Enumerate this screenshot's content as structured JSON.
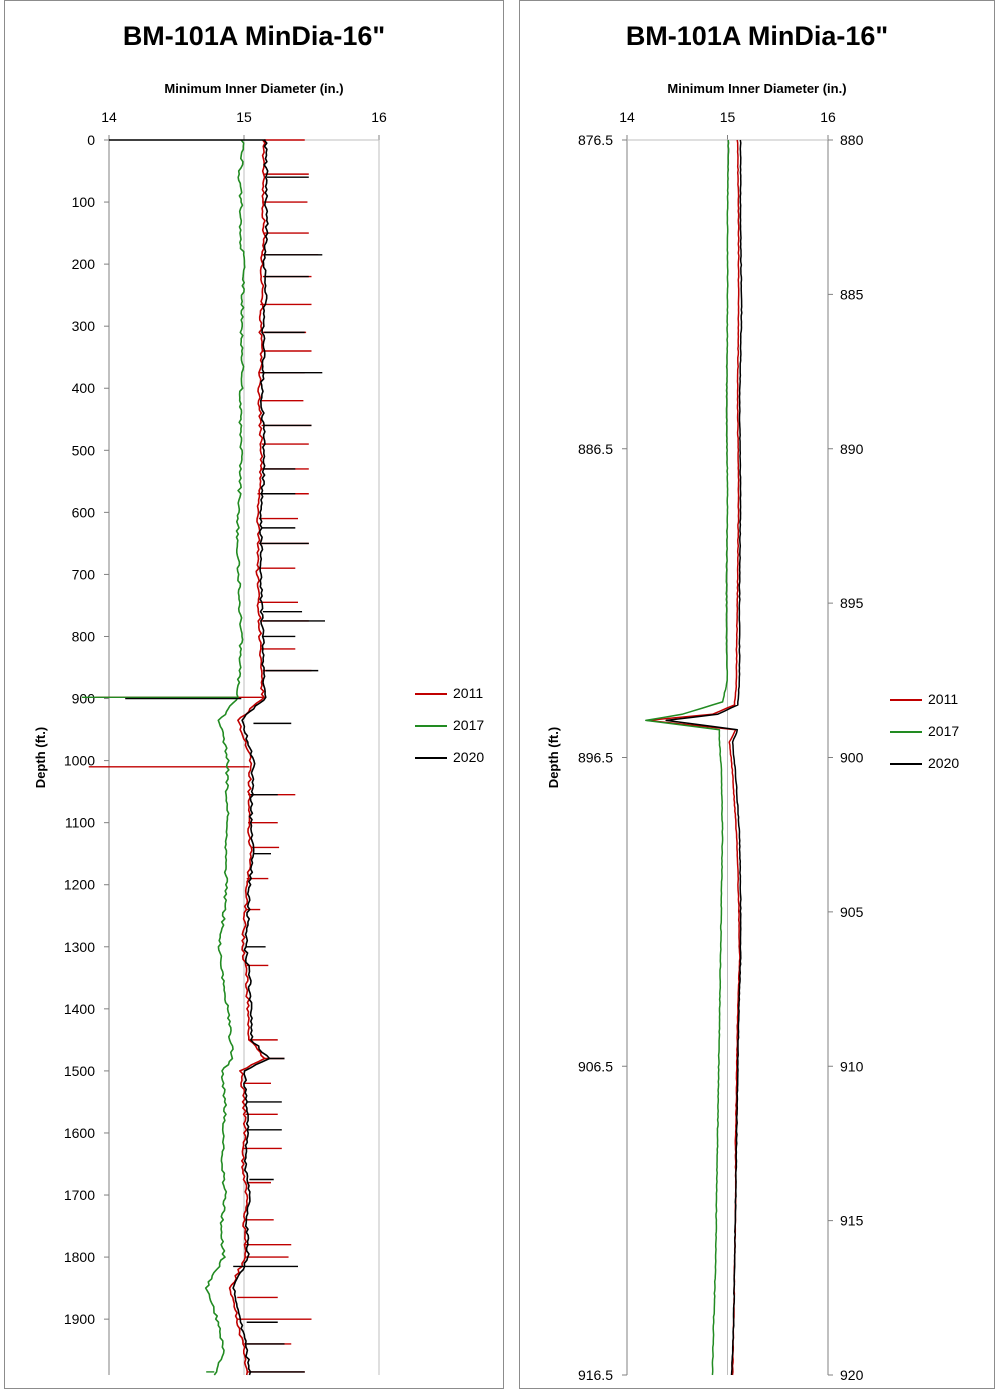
{
  "chart_data": [
    {
      "type": "line",
      "title": "BM-101A MinDia-16\"",
      "xlabel": "Minimum Inner Diameter (in.)",
      "ylabel": "Depth (ft.)",
      "xlim": [
        14,
        16
      ],
      "ylim": [
        0,
        1990
      ],
      "x_ticks": [
        "14",
        "15",
        "16"
      ],
      "y_ticks": [
        "0",
        "100",
        "200",
        "300",
        "400",
        "500",
        "600",
        "700",
        "800",
        "900",
        "1000",
        "1100",
        "1200",
        "1300",
        "1400",
        "1500",
        "1600",
        "1700",
        "1800",
        "1900"
      ],
      "legend": "right",
      "series": [
        {
          "name": "2011",
          "color": "#c00000",
          "depth": [
            0,
            40,
            60,
            100,
            150,
            200,
            250,
            300,
            350,
            400,
            450,
            500,
            550,
            600,
            650,
            700,
            750,
            800,
            850,
            898,
            935,
            1000,
            1050,
            1100,
            1150,
            1200,
            1250,
            1300,
            1350,
            1400,
            1450,
            1480,
            1500,
            1550,
            1600,
            1650,
            1700,
            1750,
            1800,
            1850,
            1900,
            1950,
            1990
          ],
          "diameter": [
            15.15,
            15.14,
            15.15,
            15.14,
            15.15,
            15.13,
            15.14,
            15.12,
            15.13,
            15.11,
            15.12,
            15.13,
            15.12,
            15.1,
            15.11,
            15.1,
            15.11,
            15.12,
            15.12,
            15.14,
            14.96,
            15.05,
            15.04,
            15.03,
            15.05,
            15.02,
            15.01,
            14.99,
            15.02,
            15.03,
            15.04,
            15.15,
            14.98,
            15.0,
            15.01,
            14.99,
            15.02,
            15.0,
            15.01,
            14.9,
            14.95,
            15.0,
            15.02
          ],
          "spikes": [
            [
              0,
              15.45
            ],
            [
              55,
              15.48
            ],
            [
              100,
              15.47
            ],
            [
              150,
              15.48
            ],
            [
              185,
              15.55
            ],
            [
              220,
              15.5
            ],
            [
              265,
              15.5
            ],
            [
              310,
              15.46
            ],
            [
              340,
              15.5
            ],
            [
              375,
              15.45
            ],
            [
              420,
              15.44
            ],
            [
              460,
              15.5
            ],
            [
              490,
              15.48
            ],
            [
              530,
              15.48
            ],
            [
              570,
              15.48
            ],
            [
              610,
              15.4
            ],
            [
              650,
              15.48
            ],
            [
              690,
              15.38
            ],
            [
              745,
              15.4
            ],
            [
              775,
              15.48
            ],
            [
              820,
              15.38
            ],
            [
              855,
              15.5
            ],
            [
              898,
              13.9
            ],
            [
              1010,
              13.85
            ],
            [
              1055,
              15.38
            ],
            [
              1100,
              15.25
            ],
            [
              1140,
              15.26
            ],
            [
              1190,
              15.18
            ],
            [
              1240,
              15.12
            ],
            [
              1330,
              15.18
            ],
            [
              1450,
              15.25
            ],
            [
              1480,
              15.3
            ],
            [
              1520,
              15.2
            ],
            [
              1570,
              15.25
            ],
            [
              1625,
              15.28
            ],
            [
              1680,
              15.2
            ],
            [
              1740,
              15.22
            ],
            [
              1780,
              15.35
            ],
            [
              1800,
              15.33
            ],
            [
              1865,
              15.25
            ],
            [
              1900,
              15.5
            ],
            [
              1940,
              15.35
            ],
            [
              1985,
              15.45
            ]
          ]
        },
        {
          "name": "2017",
          "color": "#228b22",
          "depth": [
            0,
            25,
            40,
            60,
            100,
            150,
            200,
            250,
            300,
            350,
            400,
            450,
            500,
            550,
            600,
            650,
            700,
            750,
            800,
            850,
            898,
            935,
            1000,
            1050,
            1100,
            1150,
            1200,
            1250,
            1300,
            1350,
            1400,
            1450,
            1480,
            1500,
            1550,
            1600,
            1650,
            1700,
            1750,
            1800,
            1850,
            1900,
            1950,
            1990
          ],
          "diameter": [
            14.99,
            14.99,
            14.98,
            14.96,
            14.98,
            14.97,
            15.0,
            14.99,
            14.98,
            14.99,
            14.98,
            14.97,
            14.98,
            14.97,
            14.96,
            14.95,
            14.96,
            14.97,
            14.98,
            14.97,
            14.95,
            14.82,
            14.88,
            14.87,
            14.88,
            14.86,
            14.87,
            14.85,
            14.82,
            14.84,
            14.88,
            14.9,
            14.92,
            14.84,
            14.86,
            14.85,
            14.84,
            14.86,
            14.83,
            14.85,
            14.72,
            14.8,
            14.85,
            14.78
          ],
          "spikes": [
            [
              0,
              14.99
            ],
            [
              898,
              13.8
            ],
            [
              1985,
              14.72
            ]
          ]
        },
        {
          "name": "2020",
          "color": "#000000",
          "depth": [
            0,
            40,
            60,
            100,
            150,
            200,
            250,
            300,
            350,
            400,
            450,
            500,
            550,
            600,
            650,
            700,
            750,
            800,
            850,
            898,
            935,
            1000,
            1050,
            1100,
            1150,
            1200,
            1250,
            1300,
            1350,
            1400,
            1450,
            1480,
            1500,
            1550,
            1600,
            1650,
            1700,
            1750,
            1800,
            1850,
            1900,
            1950,
            1990
          ],
          "diameter": [
            15.16,
            15.16,
            15.17,
            15.16,
            15.17,
            15.15,
            15.16,
            15.14,
            15.15,
            15.13,
            15.14,
            15.15,
            15.14,
            15.12,
            15.13,
            15.12,
            15.13,
            15.14,
            15.14,
            15.16,
            14.98,
            15.07,
            15.06,
            15.05,
            15.07,
            15.04,
            15.03,
            15.01,
            15.04,
            15.05,
            15.06,
            15.18,
            15.0,
            15.02,
            15.03,
            15.01,
            15.04,
            15.02,
            15.03,
            14.92,
            14.97,
            15.02,
            15.04
          ],
          "spikes": [
            [
              0,
              14.0
            ],
            [
              60,
              15.48
            ],
            [
              185,
              15.58
            ],
            [
              220,
              15.48
            ],
            [
              310,
              15.45
            ],
            [
              375,
              15.58
            ],
            [
              460,
              15.5
            ],
            [
              530,
              15.38
            ],
            [
              570,
              15.38
            ],
            [
              625,
              15.38
            ],
            [
              650,
              15.48
            ],
            [
              760,
              15.43
            ],
            [
              775,
              15.6
            ],
            [
              800,
              15.38
            ],
            [
              855,
              15.55
            ],
            [
              900,
              14.12
            ],
            [
              940,
              15.35
            ],
            [
              1055,
              15.25
            ],
            [
              1150,
              15.2
            ],
            [
              1300,
              15.16
            ],
            [
              1480,
              15.3
            ],
            [
              1550,
              15.28
            ],
            [
              1595,
              15.28
            ],
            [
              1675,
              15.22
            ],
            [
              1815,
              15.4
            ],
            [
              1905,
              15.25
            ],
            [
              1940,
              15.3
            ],
            [
              1985,
              15.45
            ]
          ]
        }
      ]
    },
    {
      "type": "line",
      "title": "BM-101A MinDia-16\"",
      "xlabel": "Minimum Inner Diameter (in.)",
      "ylabel": "Depth (ft.)",
      "xlim": [
        14,
        16
      ],
      "ylim": [
        876.5,
        916.5
      ],
      "y2lim": [
        880,
        920
      ],
      "x_ticks": [
        "14",
        "15",
        "16"
      ],
      "y_ticks": [
        "876.5",
        "886.5",
        "896.5",
        "906.5",
        "916.5"
      ],
      "y2_ticks": [
        "880",
        "885",
        "890",
        "895",
        "900",
        "905",
        "910",
        "915",
        "920"
      ],
      "legend": "right",
      "series": [
        {
          "name": "2011",
          "color": "#c00000",
          "depth": [
            876.5,
            879,
            882,
            885,
            888,
            891,
            893,
            894,
            894.8,
            895.1,
            895.3,
            895.6,
            896,
            897,
            899,
            901,
            903,
            905,
            907,
            909,
            911,
            913,
            915,
            916.5
          ],
          "diameter": [
            15.1,
            15.11,
            15.11,
            15.1,
            15.11,
            15.1,
            15.09,
            15.09,
            15.07,
            14.85,
            14.2,
            15.08,
            15.02,
            15.05,
            15.09,
            15.11,
            15.12,
            15.1,
            15.09,
            15.08,
            15.08,
            15.07,
            15.06,
            15.05
          ]
        },
        {
          "name": "2017",
          "color": "#228b22",
          "depth": [
            876.5,
            879,
            882,
            885,
            888,
            891,
            893,
            894,
            894.7,
            895.1,
            895.3,
            895.6,
            896,
            897,
            899,
            901,
            903,
            905,
            907,
            909,
            911,
            913,
            915,
            916.5
          ],
          "diameter": [
            15.01,
            15.0,
            15.0,
            14.99,
            15.0,
            14.99,
            14.99,
            15.0,
            14.95,
            14.55,
            14.19,
            14.92,
            14.92,
            14.94,
            14.95,
            14.94,
            14.93,
            14.92,
            14.91,
            14.9,
            14.89,
            14.88,
            14.86,
            14.85
          ]
        },
        {
          "name": "2020",
          "color": "#000000",
          "depth": [
            876.5,
            879,
            882,
            885,
            888,
            891,
            893,
            894,
            894.8,
            895.1,
            895.3,
            895.6,
            896,
            897,
            899,
            901,
            903,
            905,
            907,
            909,
            911,
            913,
            915,
            916.5
          ],
          "diameter": [
            15.13,
            15.13,
            15.14,
            15.12,
            15.13,
            15.12,
            15.12,
            15.12,
            15.1,
            14.9,
            14.39,
            15.1,
            15.05,
            15.08,
            15.12,
            15.13,
            15.13,
            15.11,
            15.1,
            15.09,
            15.08,
            15.07,
            15.06,
            15.04
          ]
        }
      ]
    }
  ]
}
